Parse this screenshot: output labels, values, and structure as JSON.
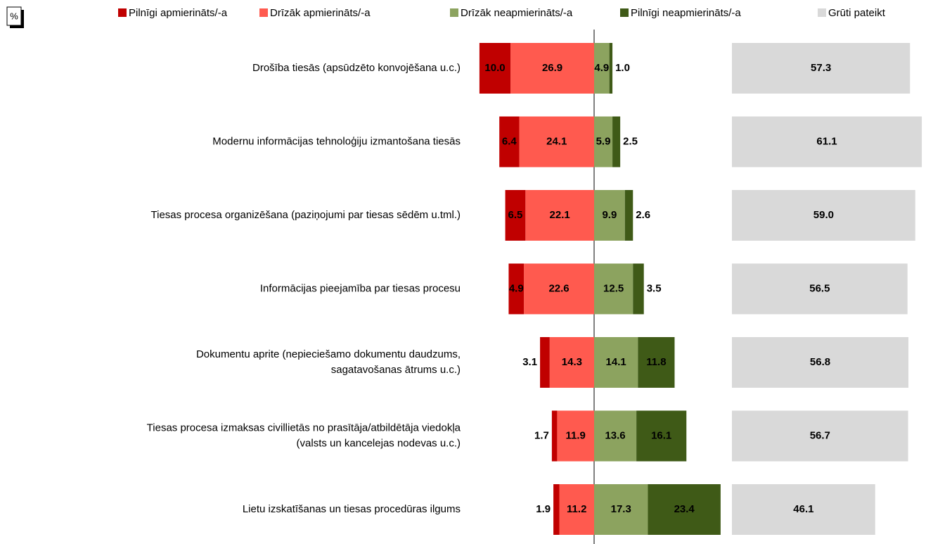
{
  "chart_data": {
    "type": "diverging-bar",
    "unit_label": "%",
    "categories": [
      [
        "Drošība tiesās (apsūdzēto konvojēšana u.c.)"
      ],
      [
        "Modernu informācijas tehnoloģiju izmantošana tiesās"
      ],
      [
        "Tiesas procesa organizēšana (paziņojumi par tiesas sēdēm u.tml.)"
      ],
      [
        "Informācijas pieejamība par tiesas procesu"
      ],
      [
        "Dokumentu aprite (nepieciešamo dokumentu daudzums,",
        "sagatavošanas ātrums u.c.)"
      ],
      [
        "Tiesas procesa izmaksas civillietās no prasītāja/atbildētāja viedokļa",
        "(valsts un kancelejas nodevas u.c.)"
      ],
      [
        "Lietu izskatīšanas un tiesas procedūras ilgums"
      ]
    ],
    "series": [
      {
        "name": "Pilnīgi apmierināts/-a",
        "color": "#c00000",
        "values": [
          10.0,
          6.4,
          6.5,
          4.9,
          3.1,
          1.7,
          1.9
        ],
        "value_labels": [
          "10.0",
          "6.4",
          "6.5",
          "4.9",
          "3.1",
          "1.7",
          "1.9"
        ]
      },
      {
        "name": "Drīzāk apmierināts/-a",
        "color": "#ff5a4f",
        "values": [
          26.9,
          24.1,
          22.1,
          22.6,
          14.3,
          11.9,
          11.2
        ],
        "value_labels": [
          "26.9",
          "24.1",
          "22.1",
          "22.6",
          "14.3",
          "11.9",
          "11.2"
        ]
      },
      {
        "name": "Drīzāk neapmierināts/-a",
        "color": "#8ca35f",
        "values": [
          4.9,
          5.9,
          9.9,
          12.5,
          14.1,
          13.6,
          17.3
        ],
        "value_labels": [
          "4.9",
          "5.9",
          "9.9",
          "12.5",
          "14.1",
          "13.6",
          "17.3"
        ]
      },
      {
        "name": "Pilnīgi neapmierināts/-a",
        "color": "#3f5a17",
        "values": [
          1.0,
          2.5,
          2.6,
          3.5,
          11.8,
          16.1,
          23.4
        ],
        "value_labels": [
          "1.0",
          "2.5",
          "2.6",
          "3.5",
          "11.8",
          "16.1",
          "23.4"
        ]
      },
      {
        "name": "Grūti pateikt",
        "color": "#d9d9d9",
        "values": [
          57.3,
          61.1,
          59.0,
          56.5,
          56.8,
          56.7,
          46.1
        ],
        "value_labels": [
          "57.3",
          "61.1",
          "59.0",
          "56.5",
          "56.8",
          "56.7",
          "46.1"
        ]
      }
    ]
  }
}
